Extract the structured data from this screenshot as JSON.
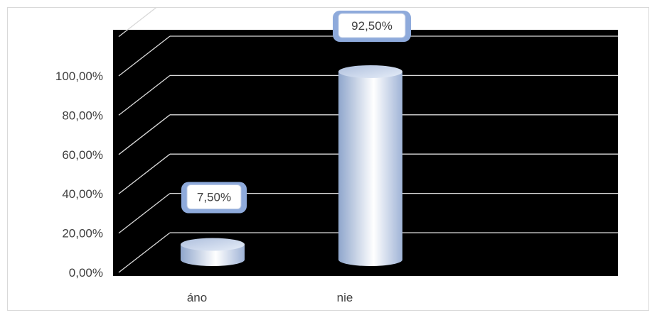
{
  "chart_data": {
    "type": "bar",
    "style": "3d-cylinder",
    "categories": [
      "áno",
      "nie"
    ],
    "values": [
      7.5,
      92.5
    ],
    "data_labels": [
      "7,50%",
      "92,50%"
    ],
    "y_ticks": [
      "0,00%",
      "20,00%",
      "40,00%",
      "60,00%",
      "80,00%",
      "100,00%"
    ],
    "y_tick_values": [
      0,
      20,
      40,
      60,
      80,
      100
    ],
    "ylim": [
      0,
      100
    ],
    "title": "",
    "xlabel": "",
    "ylabel": "",
    "grid": true,
    "legend": "none",
    "colors": {
      "plot_background": "#000000",
      "gridline": "#d9d9d9",
      "bar_light": "#ffffff",
      "bar_mid": "#c5d3ea",
      "bar_dark": "#8fa6cc",
      "label_bubble": "#8eaadb",
      "label_box": "#ffffff",
      "text": "#404040"
    }
  }
}
